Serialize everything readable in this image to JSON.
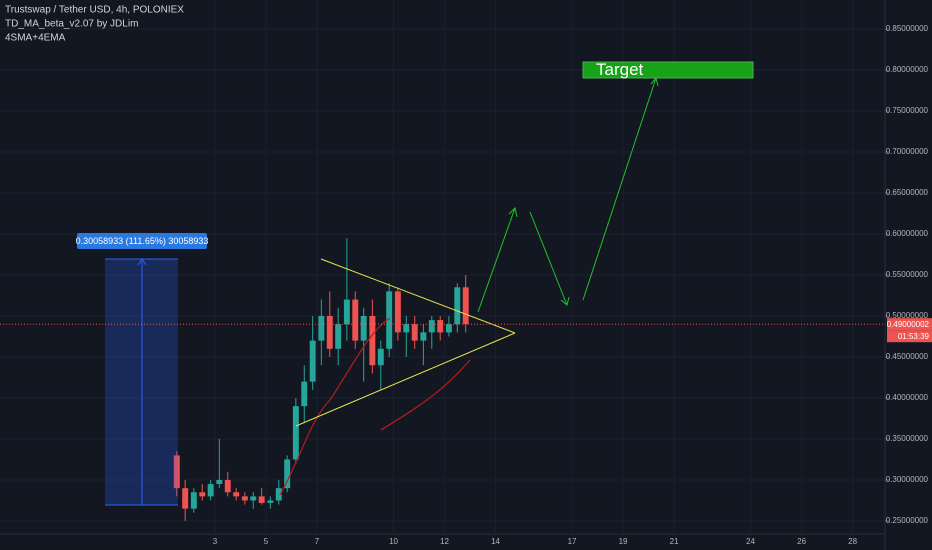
{
  "chart_data": {
    "type": "candlestick",
    "title": "Trustswap / Tether USD, 4h, POLONIEX",
    "indicators": [
      "TD_MA_beta_v2.07 by JDLim",
      "4SMA+4EMA"
    ],
    "annotations": {
      "target": "Target",
      "measure": "0.30058933 (111.65%) 30058933"
    },
    "last_price": 0.49000002,
    "countdown": "01:53:39",
    "up_color": "#26a69a",
    "down_color": "#ef5350",
    "x": [
      1.5,
      1.83,
      2.17,
      2.5,
      2.83,
      3.17,
      3.5,
      3.83,
      4.17,
      4.5,
      4.83,
      5.17,
      5.5,
      5.83,
      6.17,
      6.5,
      6.83,
      7.17,
      7.5,
      7.83,
      8.17,
      8.5,
      8.83,
      9.17,
      9.5,
      9.83,
      10.17,
      10.5,
      10.83,
      11.17,
      11.5,
      11.83,
      12.17,
      12.5,
      12.83
    ],
    "open": [
      0.33,
      0.29,
      0.265,
      0.285,
      0.28,
      0.295,
      0.3,
      0.285,
      0.28,
      0.275,
      0.28,
      0.272,
      0.275,
      0.29,
      0.325,
      0.39,
      0.42,
      0.47,
      0.5,
      0.46,
      0.49,
      0.52,
      0.47,
      0.5,
      0.44,
      0.46,
      0.53,
      0.48,
      0.49,
      0.47,
      0.48,
      0.495,
      0.48,
      0.49,
      0.535
    ],
    "high": [
      0.335,
      0.3,
      0.29,
      0.295,
      0.3,
      0.35,
      0.31,
      0.29,
      0.285,
      0.285,
      0.29,
      0.28,
      0.3,
      0.33,
      0.4,
      0.44,
      0.5,
      0.52,
      0.53,
      0.51,
      0.595,
      0.53,
      0.51,
      0.52,
      0.47,
      0.54,
      0.535,
      0.5,
      0.5,
      0.49,
      0.5,
      0.5,
      0.5,
      0.54,
      0.55
    ],
    "low": [
      0.28,
      0.25,
      0.26,
      0.275,
      0.275,
      0.29,
      0.28,
      0.275,
      0.27,
      0.265,
      0.27,
      0.265,
      0.27,
      0.285,
      0.32,
      0.37,
      0.41,
      0.44,
      0.45,
      0.44,
      0.47,
      0.46,
      0.42,
      0.43,
      0.41,
      0.45,
      0.47,
      0.45,
      0.46,
      0.44,
      0.46,
      0.47,
      0.475,
      0.48,
      0.48
    ],
    "close": [
      0.29,
      0.265,
      0.285,
      0.28,
      0.295,
      0.3,
      0.285,
      0.28,
      0.275,
      0.28,
      0.272,
      0.275,
      0.29,
      0.325,
      0.39,
      0.42,
      0.47,
      0.5,
      0.46,
      0.49,
      0.52,
      0.47,
      0.5,
      0.44,
      0.46,
      0.53,
      0.48,
      0.49,
      0.47,
      0.48,
      0.495,
      0.48,
      0.49,
      0.535,
      0.49
    ],
    "xlim": [
      -5.43,
      29.27
    ],
    "xticks": [
      3,
      5,
      7,
      10,
      12,
      14,
      17,
      19,
      21,
      24,
      26,
      28
    ],
    "ylim": [
      0.2341,
      0.8854
    ],
    "yticks": [
      {
        "value": 0.85,
        "label": "0.85000000"
      },
      {
        "value": 0.8,
        "label": "0.80000000"
      },
      {
        "value": 0.75,
        "label": "0.75000000"
      },
      {
        "value": 0.7,
        "label": "0.70000000"
      },
      {
        "value": 0.65,
        "label": "0.65000000"
      },
      {
        "value": 0.6,
        "label": "0.60000000"
      },
      {
        "value": 0.55,
        "label": "0.55000000"
      },
      {
        "value": 0.5,
        "label": "0.50000000"
      },
      {
        "value": 0.45,
        "label": "0.45000000"
      },
      {
        "value": 0.4,
        "label": "0.40000000"
      },
      {
        "value": 0.35,
        "label": "0.35000000"
      },
      {
        "value": 0.3,
        "label": "0.30000000"
      },
      {
        "value": 0.25,
        "label": "0.25000000"
      }
    ]
  }
}
